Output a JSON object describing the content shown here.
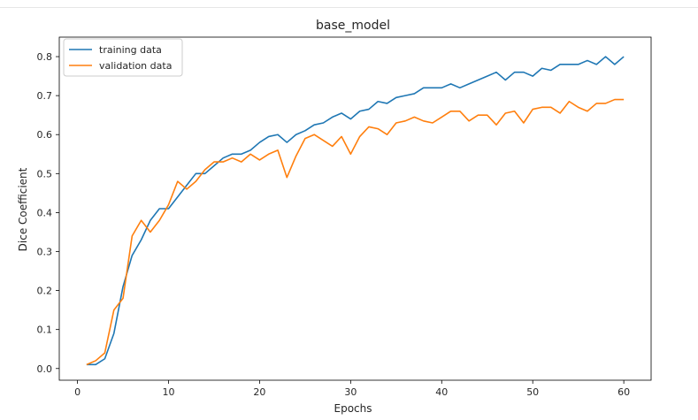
{
  "chart_data": {
    "type": "line",
    "title": "base_model",
    "xlabel": "Epochs",
    "ylabel": "Dice Coefficient",
    "xlim": [
      -2,
      63
    ],
    "ylim": [
      -0.03,
      0.85
    ],
    "xticks": [
      0,
      10,
      20,
      30,
      40,
      50,
      60
    ],
    "yticks": [
      0.0,
      0.1,
      0.2,
      0.3,
      0.4,
      0.5,
      0.6,
      0.7,
      0.8
    ],
    "ytick_labels": [
      "0.0",
      "0.1",
      "0.2",
      "0.3",
      "0.4",
      "0.5",
      "0.6",
      "0.7",
      "0.8"
    ],
    "xtick_labels": [
      "0",
      "10",
      "20",
      "30",
      "40",
      "50",
      "60"
    ],
    "grid": false,
    "legend_position": "upper-left",
    "x": [
      1,
      2,
      3,
      4,
      5,
      6,
      7,
      8,
      9,
      10,
      11,
      12,
      13,
      14,
      15,
      16,
      17,
      18,
      19,
      20,
      21,
      22,
      23,
      24,
      25,
      26,
      27,
      28,
      29,
      30,
      31,
      32,
      33,
      34,
      35,
      36,
      37,
      38,
      39,
      40,
      41,
      42,
      43,
      44,
      45,
      46,
      47,
      48,
      49,
      50,
      51,
      52,
      53,
      54,
      55,
      56,
      57,
      58,
      59,
      60
    ],
    "series": [
      {
        "name": "training data",
        "color": "#1f77b4",
        "values": [
          0.01,
          0.01,
          0.025,
          0.09,
          0.21,
          0.29,
          0.33,
          0.38,
          0.41,
          0.41,
          0.44,
          0.47,
          0.5,
          0.5,
          0.52,
          0.54,
          0.55,
          0.55,
          0.56,
          0.58,
          0.595,
          0.6,
          0.58,
          0.6,
          0.61,
          0.625,
          0.63,
          0.645,
          0.655,
          0.64,
          0.66,
          0.665,
          0.685,
          0.68,
          0.695,
          0.7,
          0.705,
          0.72,
          0.72,
          0.72,
          0.73,
          0.72,
          0.73,
          0.74,
          0.75,
          0.76,
          0.74,
          0.76,
          0.76,
          0.75,
          0.77,
          0.765,
          0.78,
          0.78,
          0.78,
          0.79,
          0.78,
          0.8,
          0.78,
          0.8
        ]
      },
      {
        "name": "validation data",
        "color": "#ff7f0e",
        "values": [
          0.01,
          0.02,
          0.04,
          0.15,
          0.18,
          0.34,
          0.38,
          0.35,
          0.38,
          0.42,
          0.48,
          0.46,
          0.48,
          0.51,
          0.53,
          0.53,
          0.54,
          0.53,
          0.55,
          0.535,
          0.55,
          0.56,
          0.49,
          0.545,
          0.59,
          0.6,
          0.585,
          0.57,
          0.595,
          0.55,
          0.595,
          0.62,
          0.615,
          0.6,
          0.63,
          0.635,
          0.645,
          0.635,
          0.63,
          0.645,
          0.66,
          0.66,
          0.635,
          0.65,
          0.65,
          0.625,
          0.655,
          0.66,
          0.63,
          0.665,
          0.67,
          0.67,
          0.655,
          0.685,
          0.67,
          0.66,
          0.68,
          0.68,
          0.69,
          0.69
        ]
      }
    ]
  }
}
